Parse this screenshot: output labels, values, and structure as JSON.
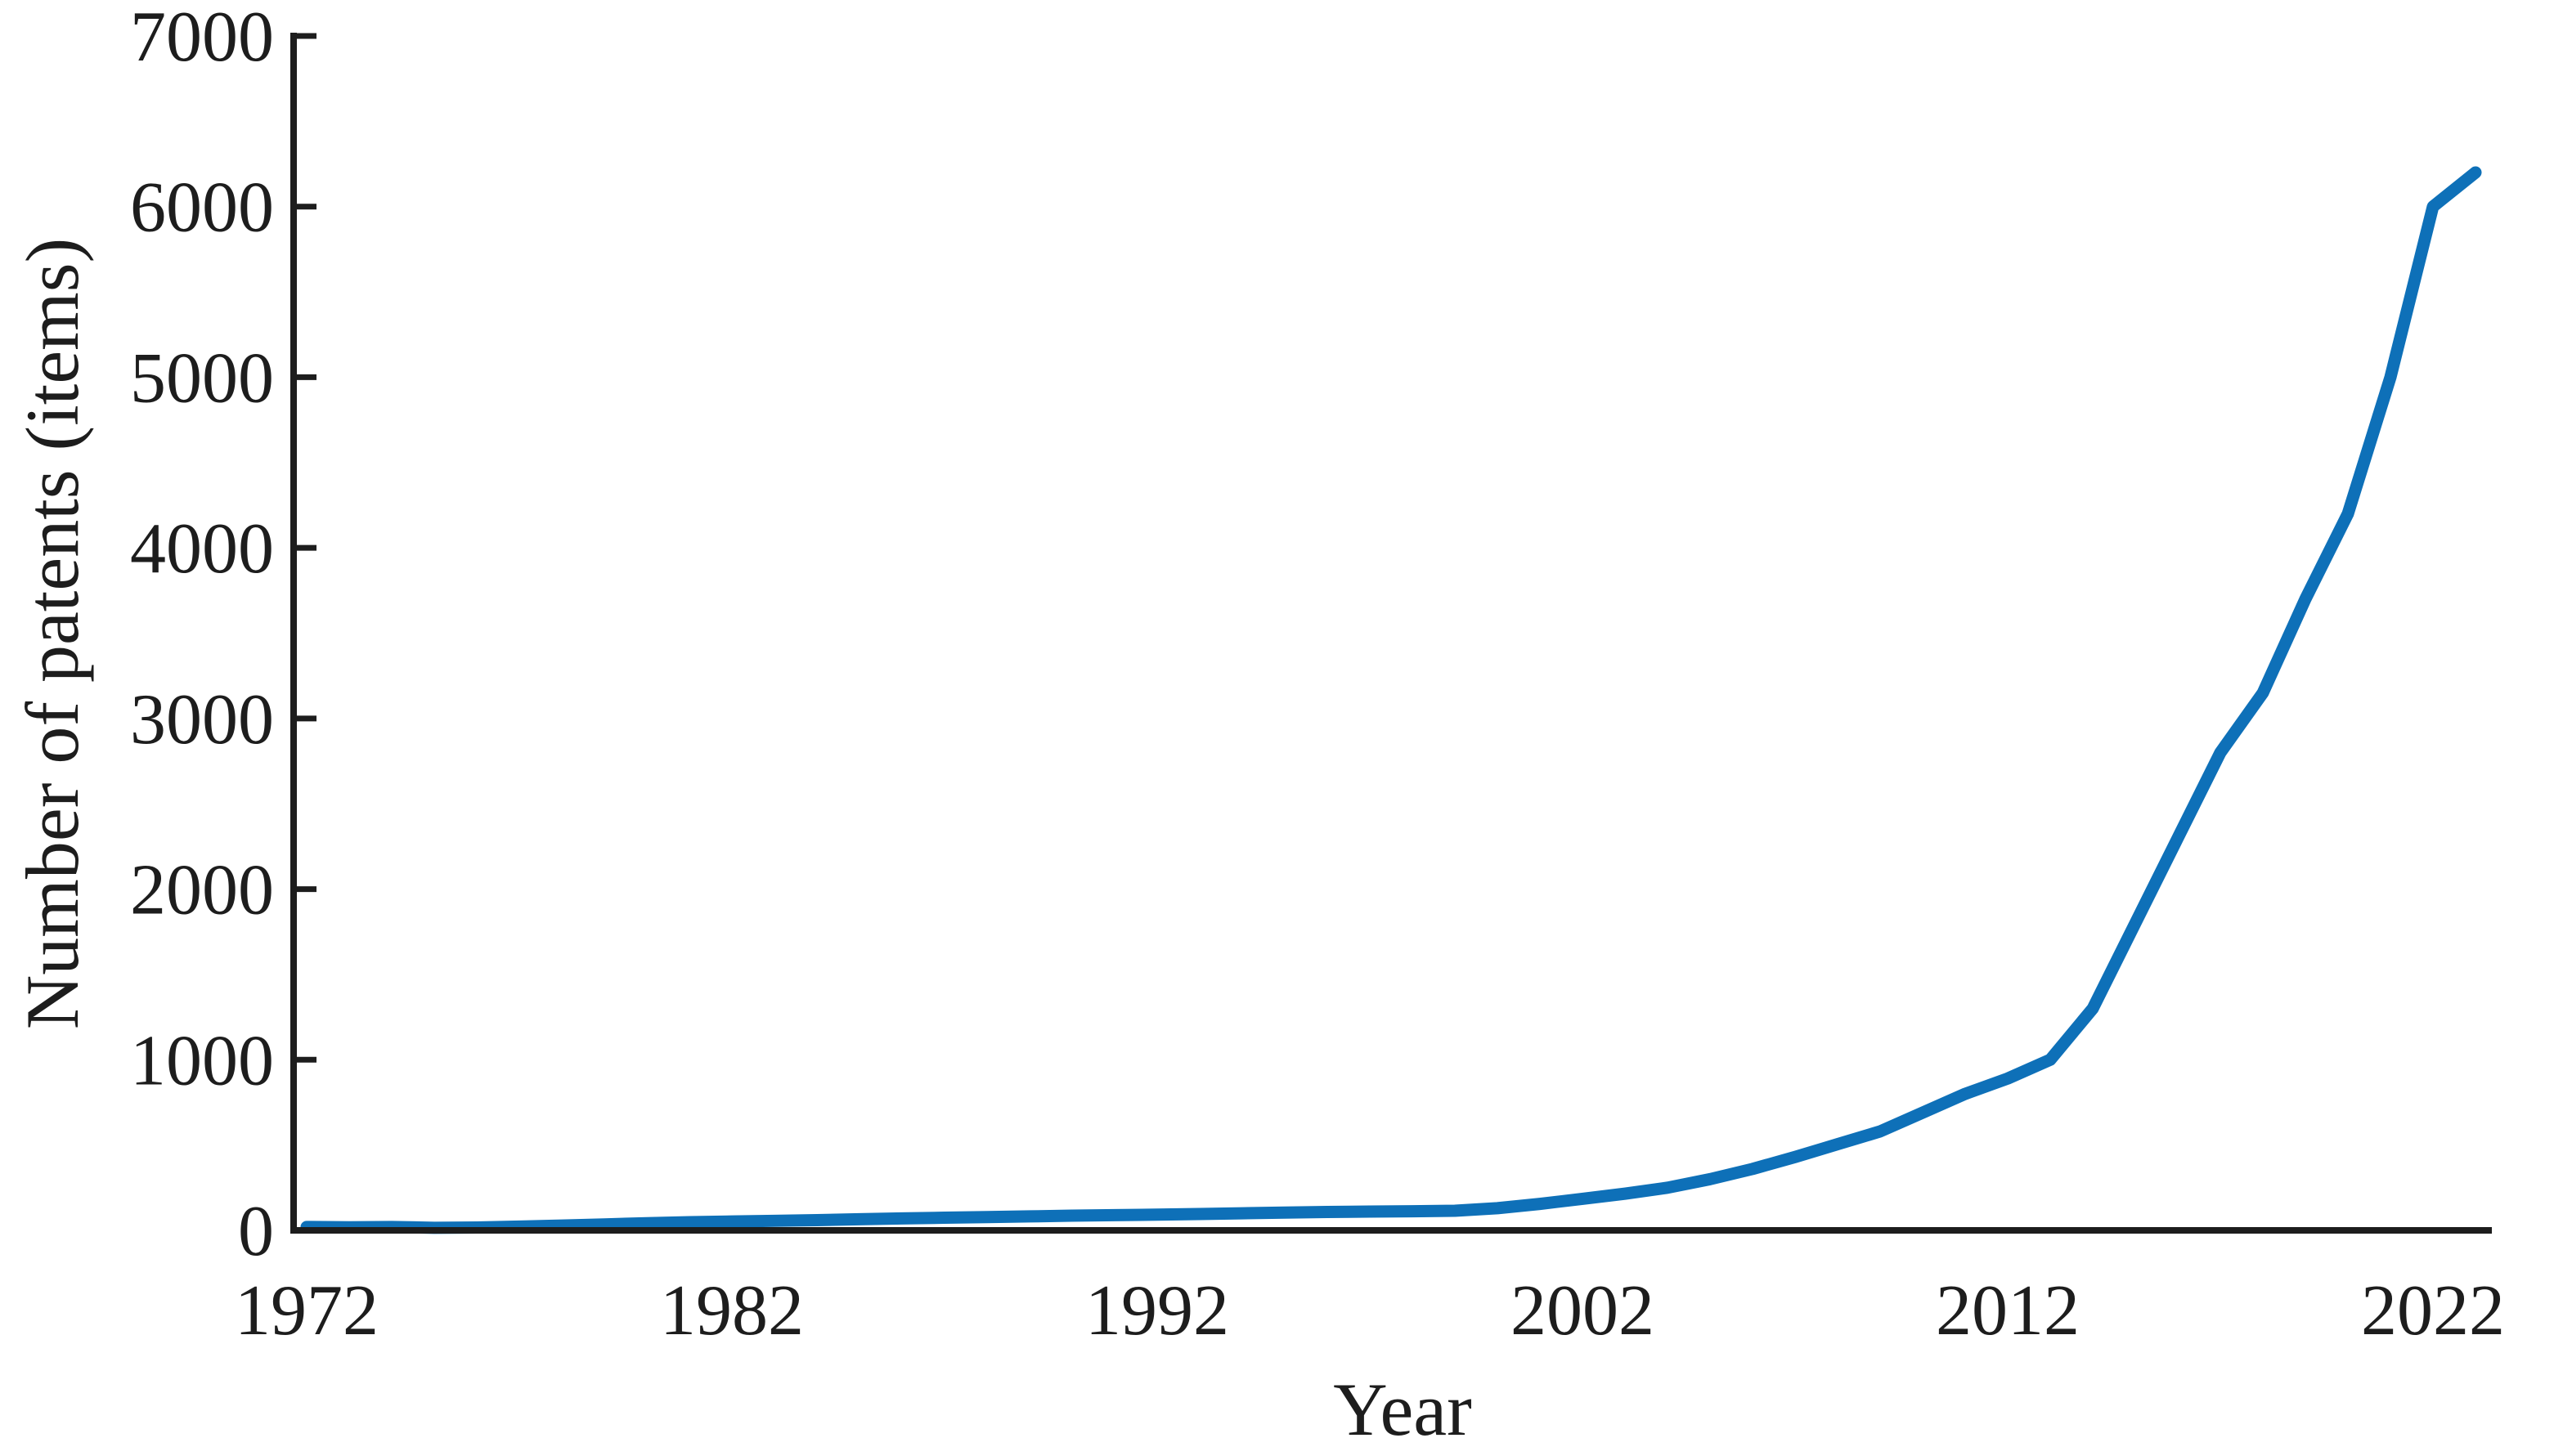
{
  "figure": {
    "background": "#ffffff",
    "text_color": "#1d1d1d",
    "axis_color": "#1d1d1d"
  },
  "chart_data": {
    "type": "line",
    "title": "",
    "xlabel": "Year",
    "ylabel": "Number of patents (items)",
    "line_color": "#0e70b8",
    "grid": false,
    "legend": null,
    "xlim": [
      1971.5,
      2023.6
    ],
    "ylim": [
      0,
      7000
    ],
    "xticks": [
      1972,
      1982,
      1992,
      2002,
      2012,
      2022
    ],
    "yticks": [
      0,
      1000,
      2000,
      3000,
      4000,
      5000,
      6000,
      7000
    ],
    "x": [
      1972,
      1973,
      1974,
      1975,
      1976,
      1977,
      1978,
      1979,
      1980,
      1981,
      1982,
      1983,
      1984,
      1985,
      1986,
      1987,
      1988,
      1989,
      1990,
      1991,
      1992,
      1993,
      1994,
      1995,
      1996,
      1997,
      1998,
      1999,
      2000,
      2001,
      2002,
      2003,
      2004,
      2005,
      2006,
      2007,
      2008,
      2009,
      2010,
      2011,
      2012,
      2013,
      2014,
      2015,
      2016,
      2017,
      2018,
      2019,
      2020,
      2021,
      2022,
      2023
    ],
    "values": [
      20,
      18,
      20,
      15,
      17,
      22,
      28,
      35,
      42,
      48,
      52,
      56,
      60,
      65,
      70,
      74,
      78,
      82,
      86,
      89,
      92,
      96,
      100,
      104,
      108,
      110,
      112,
      115,
      130,
      155,
      185,
      215,
      250,
      300,
      360,
      430,
      505,
      580,
      690,
      800,
      890,
      1000,
      1300,
      1800,
      2300,
      2800,
      3150,
      3700,
      4200,
      5000,
      6000,
      6200
    ]
  }
}
